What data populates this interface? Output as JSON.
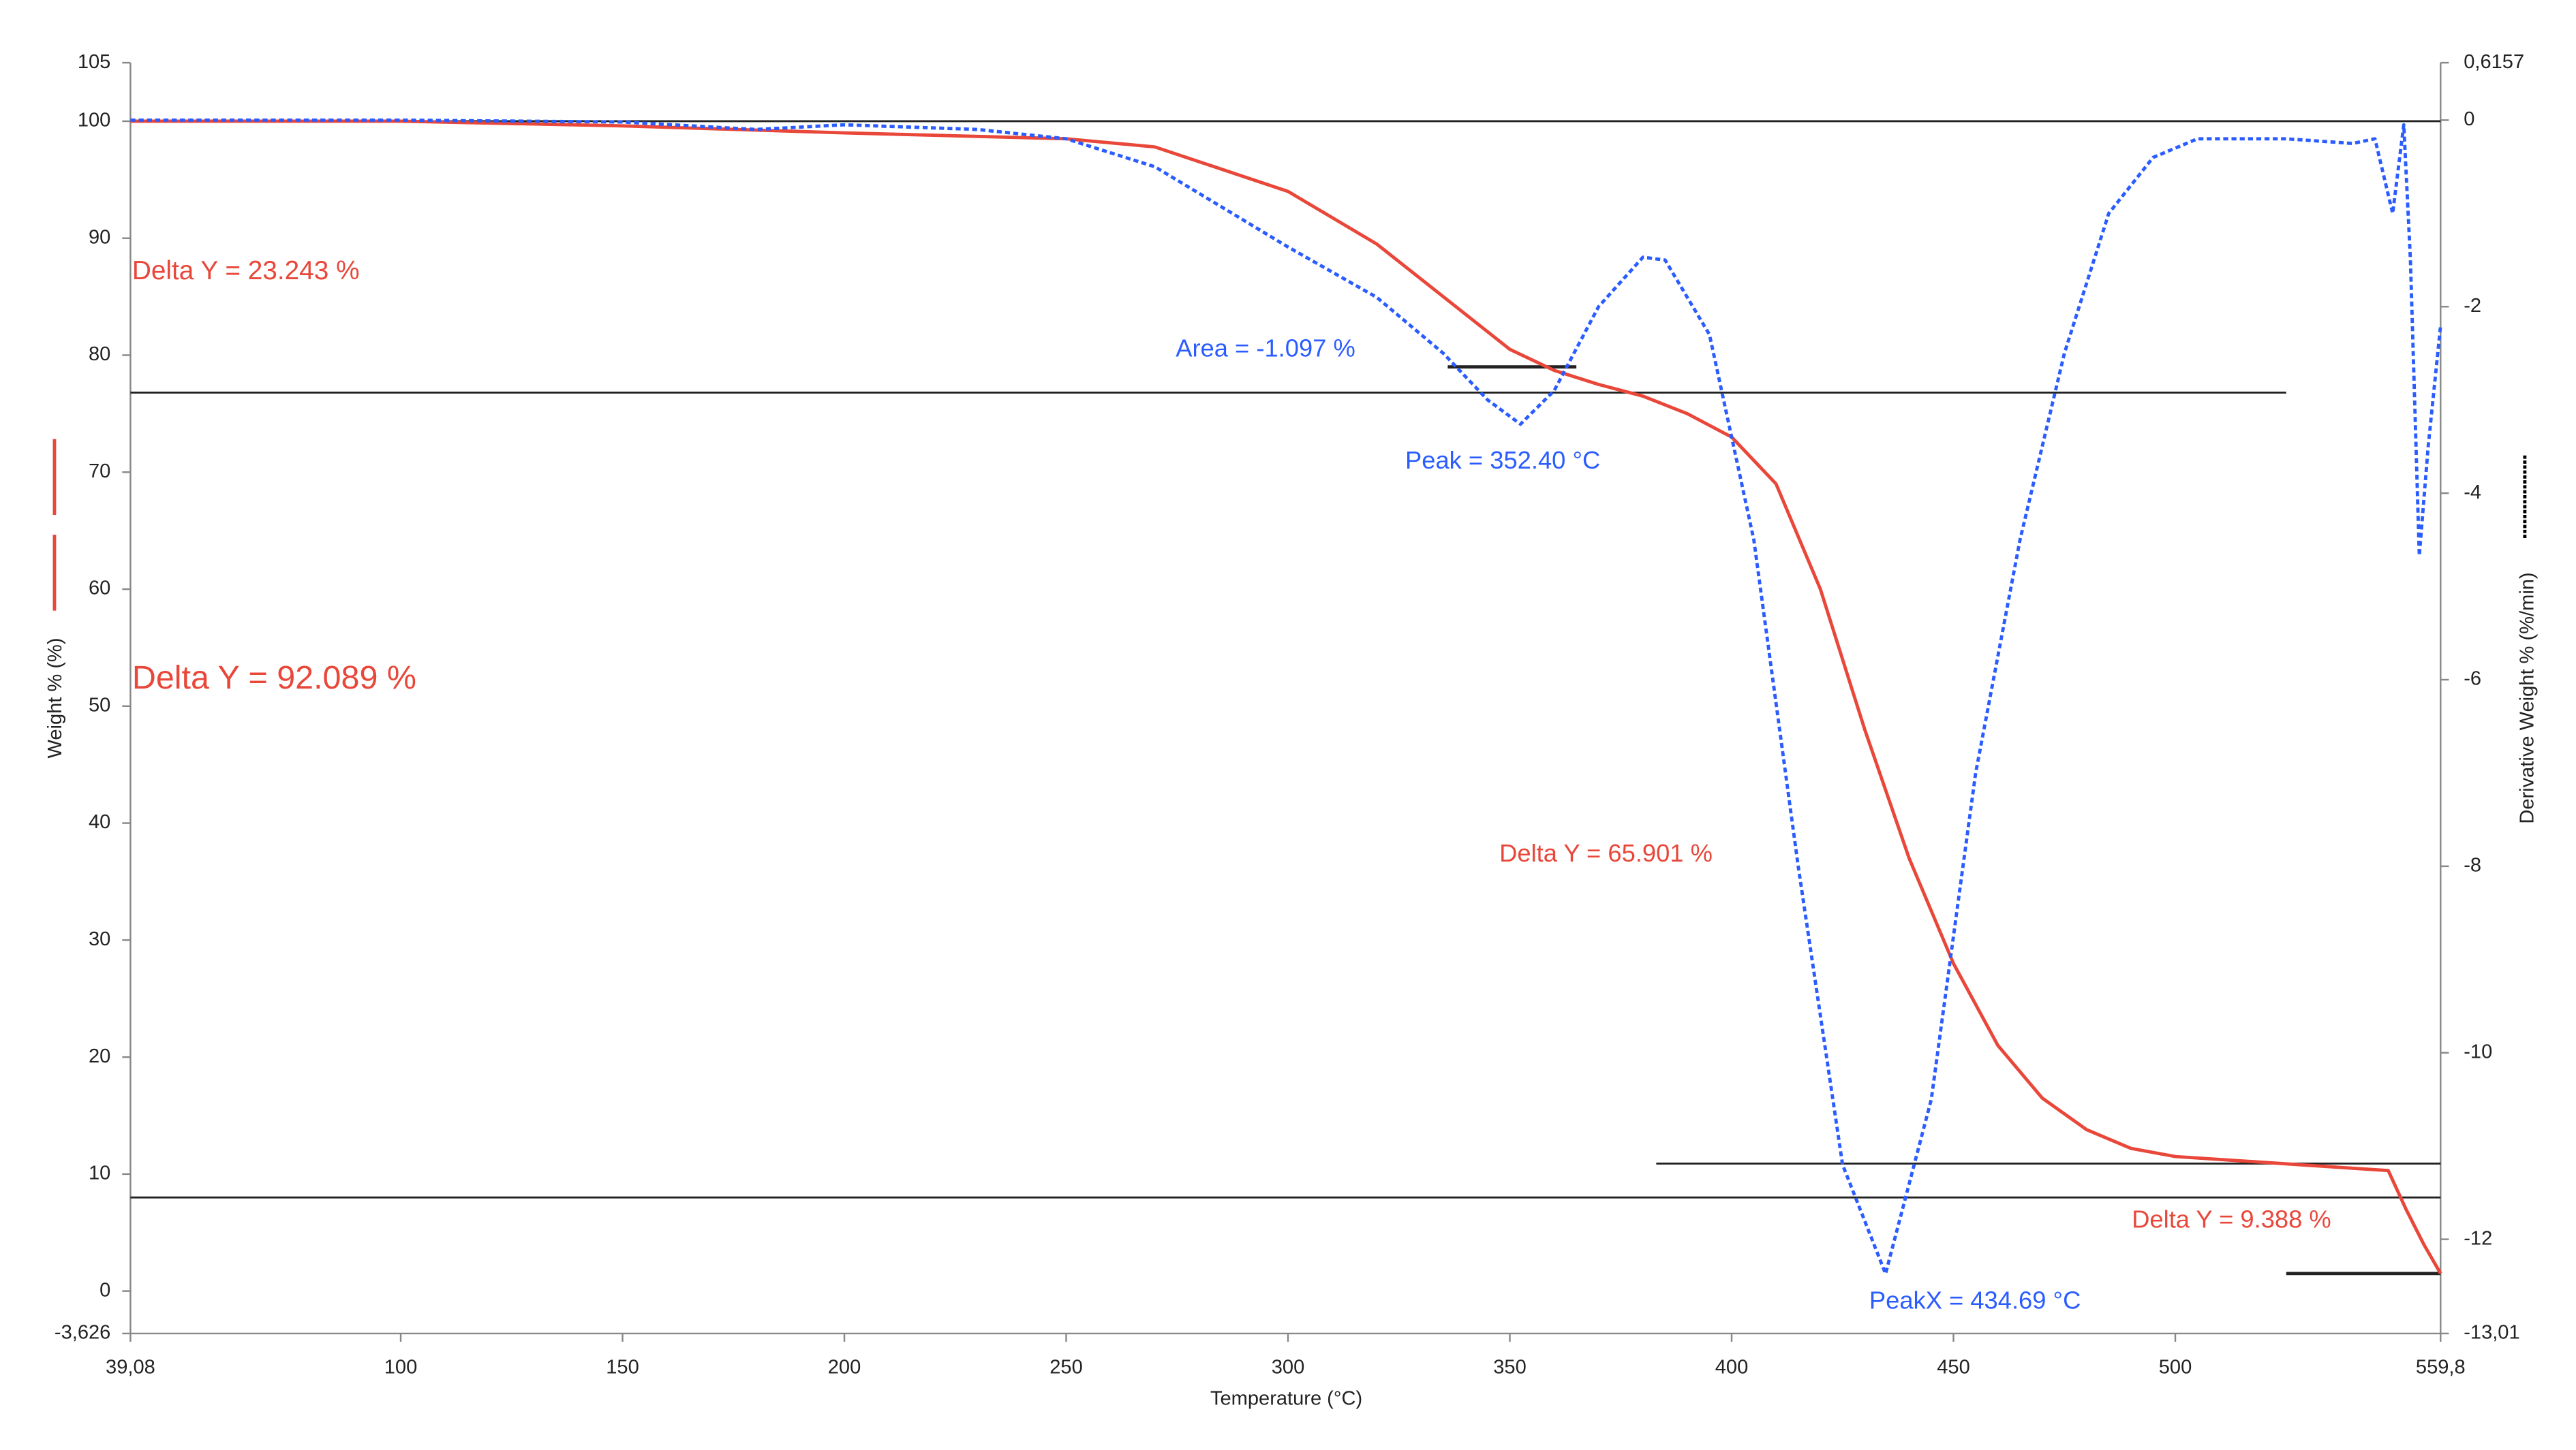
{
  "chart_data": {
    "type": "line",
    "xlabel": "Temperature (°C)",
    "ylabel": "Weight % (%)",
    "y2label": "Derivative Weight % (%/min)",
    "xlim": [
      39.08,
      559.8
    ],
    "xticks": [
      {
        "value": 39.08,
        "label": "39,08"
      },
      100,
      150,
      200,
      250,
      300,
      350,
      400,
      450,
      500,
      {
        "value": 559.8,
        "label": "559,8"
      }
    ],
    "ylim": [
      -3.626,
      105
    ],
    "yticks": [
      {
        "value": -3.626,
        "label": "-3,626"
      },
      0,
      10,
      20,
      30,
      40,
      50,
      60,
      70,
      80,
      90,
      100,
      105
    ],
    "y2lim": [
      -13.01,
      0.6157
    ],
    "y2ticks": [
      {
        "value": -13.01,
        "label": "-13,01"
      },
      -12,
      -10,
      -8,
      -6,
      -4,
      -2,
      0,
      {
        "value": 0.6157,
        "label": "0,6157"
      }
    ],
    "series": [
      {
        "color": "#e8473a",
        "x": [
          39.08,
          100,
          150,
          200,
          250,
          270,
          300,
          320,
          340,
          350,
          360,
          370,
          380,
          390,
          400,
          410,
          420,
          430,
          440,
          450,
          460,
          470,
          480,
          490,
          500,
          520,
          540,
          548,
          552,
          556,
          559.8
        ],
        "values": [
          100,
          100,
          99.6,
          99,
          98.5,
          97.8,
          94,
          89.5,
          83.5,
          80.5,
          78.7,
          77.5,
          76.5,
          75,
          73,
          69,
          60,
          48,
          37,
          28,
          21,
          16.5,
          13.8,
          12.2,
          11.5,
          11,
          10.5,
          10.3,
          7,
          4,
          1.5
        ]
      },
      {
        "color": "#2a5cff",
        "axis": "y2",
        "dashed": true,
        "x": [
          39.08,
          100,
          150,
          180,
          200,
          230,
          250,
          270,
          300,
          320,
          335,
          345,
          352.4,
          360,
          370,
          380,
          385,
          395,
          405,
          415,
          425,
          434.69,
          445,
          455,
          465,
          475,
          485,
          495,
          505,
          525,
          540,
          545,
          549,
          551.5,
          553,
          555,
          557,
          559.8
        ],
        "values": [
          0,
          0,
          -0.02,
          -0.1,
          -0.05,
          -0.1,
          -0.2,
          -0.5,
          -1.36,
          -1.9,
          -2.5,
          -3.0,
          -3.26,
          -2.9,
          -2.0,
          -1.47,
          -1.5,
          -2.3,
          -4.5,
          -8,
          -11.2,
          -12.37,
          -10.5,
          -7,
          -4.5,
          -2.5,
          -1.0,
          -0.4,
          -0.2,
          -0.2,
          -0.25,
          -0.2,
          -1.0,
          -0.05,
          -1.5,
          -4.67,
          -3.5,
          -2.2
        ]
      }
    ],
    "hlines": [
      {
        "y": 100,
        "x": [
          39.08,
          559.8
        ]
      },
      {
        "y": 76.8,
        "x": [
          39.08,
          525
        ]
      },
      {
        "y": 79,
        "x": [
          336,
          365
        ]
      },
      {
        "y": 10.9,
        "x": [
          383,
          559.8
        ]
      },
      {
        "y": 8,
        "x": [
          39.08,
          559.8
        ]
      },
      {
        "y": 1.5,
        "x": [
          525,
          559.8
        ]
      }
    ],
    "annotations": [
      {
        "text": "Delta Y = 23.243 %",
        "color": "#e8473a"
      },
      {
        "text": "Area = -1.097 %",
        "color": "#2a5cff"
      },
      {
        "text": "Peak = 352.40 °C",
        "color": "#2a5cff"
      },
      {
        "text": "Delta Y = 92.089 %",
        "color": "#e8473a"
      },
      {
        "text": "Delta Y = 65.901 %",
        "color": "#e8473a"
      },
      {
        "text": "Delta Y = 9.388 %",
        "color": "#e8473a"
      },
      {
        "text": "PeakX = 434.69 °C",
        "color": "#2a5cff"
      }
    ]
  }
}
